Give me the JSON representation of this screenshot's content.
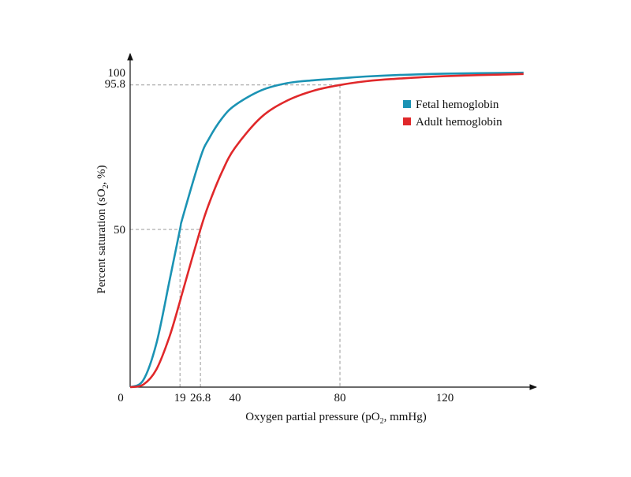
{
  "chart_data": {
    "type": "line",
    "title": "",
    "xlabel": "Oxygen partial pressure (pO",
    "xlabel_sub": "2",
    "xlabel_tail": ", mmHg)",
    "ylabel": "Percent saturation (sO",
    "ylabel_sub": "2",
    "ylabel_tail": ", %)",
    "xlim": [
      0,
      155
    ],
    "ylim": [
      0,
      105
    ],
    "grid": false,
    "legend_position": "top-right",
    "x_ticks": [
      {
        "value": 0,
        "label": "0"
      },
      {
        "value": 19,
        "label": "19"
      },
      {
        "value": 26.8,
        "label": "26.8"
      },
      {
        "value": 40,
        "label": "40"
      },
      {
        "value": 80,
        "label": "80"
      },
      {
        "value": 120,
        "label": "120"
      }
    ],
    "y_ticks": [
      {
        "value": 50,
        "label": "50"
      },
      {
        "value": 95.8,
        "label": "95.8"
      },
      {
        "value": 100,
        "label": "100"
      }
    ],
    "reference_lines": [
      {
        "x": 80,
        "y": 95.8
      },
      {
        "x": 26.8,
        "y": 50
      },
      {
        "x": 19,
        "y": 50
      }
    ],
    "x": [
      0,
      5,
      10,
      15,
      19,
      20,
      26.8,
      30,
      35,
      40,
      50,
      60,
      70,
      80,
      90,
      100,
      120,
      150
    ],
    "series": [
      {
        "name": "Fetal hemoglobin",
        "color": "#1b93b4",
        "values": [
          0,
          2.2,
          13.8,
          33.7,
          50,
          53.7,
          72.8,
          78.7,
          85.2,
          89.4,
          94.1,
          96.4,
          97.3,
          97.9,
          98.5,
          98.9,
          99.4,
          99.7
        ]
      },
      {
        "name": "Adult hemoglobin",
        "color": "#e0282a",
        "values": [
          0,
          0.8,
          5.6,
          16.0,
          27.2,
          30.2,
          50,
          58.0,
          68.2,
          75.9,
          85.6,
          90.9,
          94.0,
          95.8,
          97.0,
          97.7,
          98.6,
          99.3
        ]
      }
    ]
  }
}
